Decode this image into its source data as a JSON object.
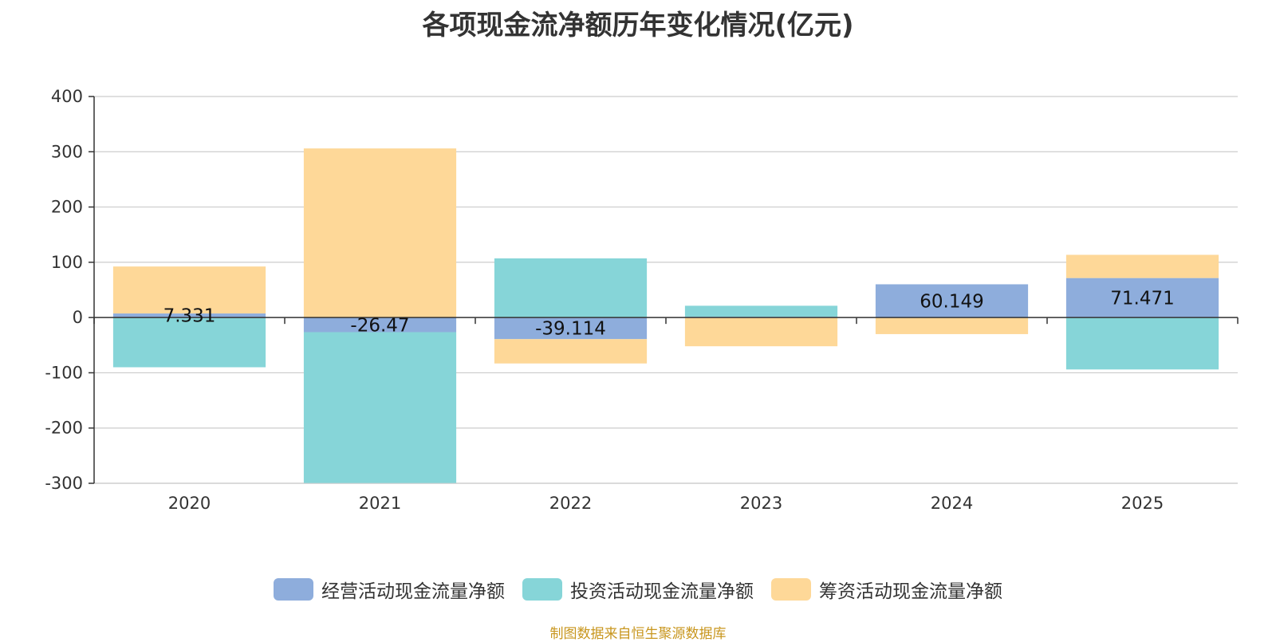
{
  "colors": {
    "operating": "#8eaddc",
    "investing": "#86d5d8",
    "financing": "#fed898",
    "axis": "#333333",
    "grid": "#cccccc",
    "source": "#c8961e"
  },
  "chart_data": {
    "type": "bar",
    "stacked": true,
    "title": "各项现金流净额历年变化情况(亿元)",
    "categories": [
      "2020",
      "2021",
      "2022",
      "2023",
      "2024",
      "2025"
    ],
    "ylim": [
      -300,
      400
    ],
    "yticks": [
      "400",
      "300",
      "200",
      "100",
      "0",
      "-100",
      "-200",
      "-300"
    ],
    "grid": true,
    "legend_position": "bottom",
    "series": [
      {
        "name": "经营活动现金流量净额",
        "values": [
          7.331,
          -26.47,
          -39.114,
          1.3,
          60.149,
          71.471
        ],
        "labels": [
          "7.331",
          "-26.47",
          "-39.114",
          "",
          "60.149",
          "71.471"
        ]
      },
      {
        "name": "投资活动现金流量净额",
        "values": [
          -90,
          -273,
          107,
          20,
          0,
          -94
        ]
      },
      {
        "name": "筹资活动现金流量净额",
        "values": [
          85,
          306,
          -44,
          -52,
          -30,
          42
        ]
      }
    ]
  },
  "source_text": "制图数据来自恒生聚源数据库"
}
